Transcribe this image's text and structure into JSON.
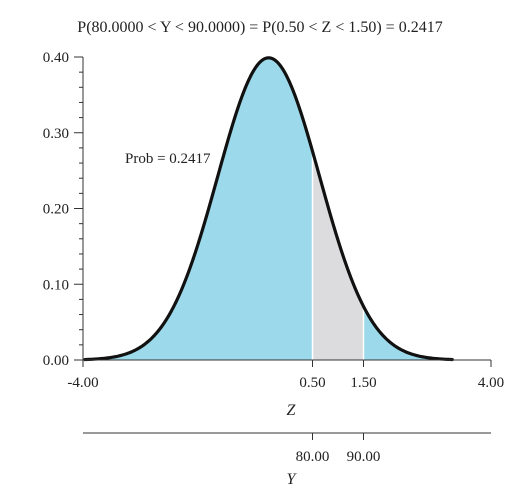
{
  "chart_data": {
    "type": "area",
    "title": "P(80.0000 < Y < 90.0000) = P(0.50 < Z < 1.50) = 0.2417",
    "distribution": "standard normal",
    "xlim": [
      -4.0,
      4.0
    ],
    "ylim": [
      0.0,
      0.4
    ],
    "z_ticks": [
      "-4.00",
      "0.50",
      "1.50",
      "4.00"
    ],
    "z_tick_values": [
      -4.0,
      0.5,
      1.5,
      4.0
    ],
    "y_ticks": [
      "0.00",
      "0.10",
      "0.20",
      "0.30",
      "0.40"
    ],
    "y_tick_values": [
      0.0,
      0.1,
      0.2,
      0.3,
      0.4
    ],
    "xlabel": "Z",
    "secondary_axis": {
      "label": "Y",
      "tick_labels": [
        "80.00",
        "90.00"
      ],
      "tick_z_values": [
        0.5,
        1.5
      ]
    },
    "shaded_region": {
      "z_from": 0.5,
      "z_to": 1.5,
      "probability": 0.2417
    },
    "annotation": "Prob = 0.2417",
    "colors": {
      "tail_fill": "#9cd9ea",
      "region_fill": "#dcdcdf",
      "curve": "#111111"
    }
  }
}
